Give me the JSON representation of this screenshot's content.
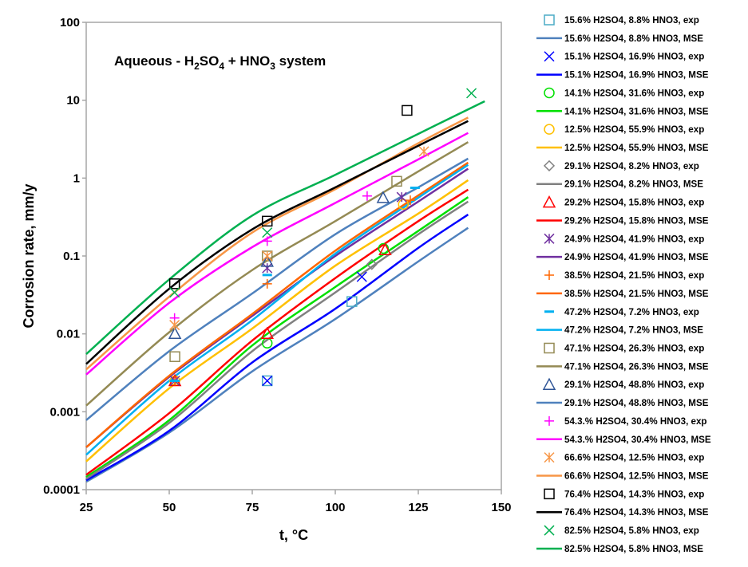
{
  "chart_data": {
    "type": "line",
    "title": "Aqueous - H2SO4 + HNO3 system",
    "title_parts": {
      "a": "Aqueous - H",
      "s1": "2",
      "b": "SO",
      "s2": "4",
      "c": " + HNO",
      "s3": "3",
      "d": " system"
    },
    "xlabel": "t, °C",
    "ylabel": "Corrosion rate, mm/y",
    "xlim": [
      25,
      150
    ],
    "ylim": [
      0.0001,
      100
    ],
    "yscale": "log",
    "xticks": [
      25,
      50,
      75,
      100,
      125,
      150
    ],
    "yticks": [
      0.0001,
      0.001,
      0.01,
      0.1,
      1,
      10,
      100
    ],
    "ytick_labels": [
      "0.0001",
      "0.001",
      "0.01",
      "0.1",
      "1",
      "10",
      "100"
    ],
    "grid": false,
    "legend_placement": "right",
    "series": [
      {
        "name": "15.6% H2SO4, 8.8% HNO3",
        "marker": "square",
        "marker_color": "#4BACC6",
        "line_color": "#4F81BD",
        "exp": [
          [
            105,
            0.026
          ],
          [
            79.5,
            0.0025
          ]
        ],
        "mse": [
          [
            25,
            0.000126
          ],
          [
            50,
            0.00054
          ],
          [
            75,
            0.0033
          ],
          [
            100,
            0.0155
          ],
          [
            125,
            0.085
          ],
          [
            140,
            0.23
          ]
        ]
      },
      {
        "name": "15.1% H2SO4, 16.9% HNO3",
        "marker": "x",
        "marker_color": "#0000FF",
        "line_color": "#0000FF",
        "exp": [
          [
            108,
            0.054
          ],
          [
            79.5,
            0.0025
          ]
        ],
        "mse": [
          [
            25,
            0.000132
          ],
          [
            50,
            0.00057
          ],
          [
            75,
            0.0043
          ],
          [
            100,
            0.021
          ],
          [
            125,
            0.127
          ],
          [
            140,
            0.34
          ]
        ]
      },
      {
        "name": "14.1% H2SO4, 31.6% HNO3",
        "marker": "circle",
        "marker_color": "#00E000",
        "line_color": "#00E000",
        "exp": [
          [
            79.5,
            0.0076
          ],
          [
            114.5,
            0.125
          ]
        ],
        "mse": [
          [
            25,
            0.000145
          ],
          [
            50,
            0.00078
          ],
          [
            75,
            0.0071
          ],
          [
            100,
            0.04
          ],
          [
            125,
            0.21
          ],
          [
            140,
            0.57
          ]
        ]
      },
      {
        "name": "12.5% H2SO4, 55.9% HNO3",
        "marker": "circle",
        "marker_color": "#FFC000",
        "line_color": "#FFC000",
        "exp": [
          [
            120.5,
            0.46
          ],
          [
            51.7,
            0.0025
          ]
        ],
        "mse": [
          [
            25,
            0.00023
          ],
          [
            50,
            0.002
          ],
          [
            75,
            0.0117
          ],
          [
            100,
            0.075
          ],
          [
            125,
            0.35
          ],
          [
            140,
            0.94
          ]
        ]
      },
      {
        "name": "29.1% H2SO4, 8.2% HNO3",
        "marker": "diamond",
        "marker_color": "#808080",
        "line_color": "#808080",
        "exp": [
          [
            111,
            0.078
          ]
        ],
        "mse": [
          [
            25,
            0.000138
          ],
          [
            50,
            0.00072
          ],
          [
            75,
            0.006
          ],
          [
            100,
            0.034
          ],
          [
            125,
            0.19
          ],
          [
            140,
            0.5
          ]
        ]
      },
      {
        "name": "29.2% H2SO4, 15.8% HNO3",
        "marker": "triangle",
        "marker_color": "#FF0000",
        "line_color": "#FF0000",
        "exp": [
          [
            79.5,
            0.0101
          ],
          [
            115,
            0.12
          ],
          [
            51.7,
            0.0025
          ]
        ],
        "mse": [
          [
            25,
            0.000155
          ],
          [
            50,
            0.00096
          ],
          [
            75,
            0.0082
          ],
          [
            100,
            0.052
          ],
          [
            125,
            0.28
          ],
          [
            140,
            0.71
          ]
        ]
      },
      {
        "name": "24.9% H2SO4, 41.9% HNO3",
        "marker": "star",
        "marker_color": "#7030A0",
        "line_color": "#7030A0",
        "exp": [
          [
            79.5,
            0.07
          ],
          [
            120,
            0.57
          ],
          [
            51.7,
            0.0025
          ]
        ],
        "mse": [
          [
            25,
            0.00035
          ],
          [
            50,
            0.0028
          ],
          [
            75,
            0.017
          ],
          [
            100,
            0.1
          ],
          [
            125,
            0.5
          ],
          [
            140,
            1.32
          ]
        ]
      },
      {
        "name": "38.5% H2SO4, 21.5% HNO3",
        "marker": "plus",
        "marker_color": "#FF6600",
        "line_color": "#FF6600",
        "exp": [
          [
            79.5,
            0.044
          ],
          [
            122.6,
            0.52
          ],
          [
            51.7,
            0.0025
          ]
        ],
        "mse": [
          [
            25,
            0.00035
          ],
          [
            50,
            0.0029
          ],
          [
            75,
            0.018
          ],
          [
            100,
            0.117
          ],
          [
            125,
            0.6
          ],
          [
            140,
            1.58
          ]
        ]
      },
      {
        "name": "47.2% H2SO4, 7.2% HNO3",
        "marker": "dash",
        "marker_color": "#00B0F0",
        "line_color": "#00B0F0",
        "exp": [
          [
            124,
            0.75
          ],
          [
            79.5,
            0.057
          ],
          [
            51.7,
            0.0025
          ]
        ],
        "mse": [
          [
            25,
            0.00028
          ],
          [
            50,
            0.0025
          ],
          [
            75,
            0.015
          ],
          [
            100,
            0.107
          ],
          [
            125,
            0.56
          ],
          [
            140,
            1.48
          ]
        ]
      },
      {
        "name": "47.1% H2SO4, 26.3% HNO3",
        "marker": "square",
        "marker_color": "#948A54",
        "line_color": "#948A54",
        "exp": [
          [
            118.5,
            0.91
          ],
          [
            79.5,
            0.1
          ],
          [
            51.7,
            0.0051
          ]
        ],
        "mse": [
          [
            25,
            0.0012
          ],
          [
            50,
            0.0105
          ],
          [
            75,
            0.066
          ],
          [
            100,
            0.28
          ],
          [
            125,
            1.22
          ],
          [
            140,
            2.9
          ]
        ]
      },
      {
        "name": "29.1% H2SO4, 48.8% HNO3",
        "marker": "triangle",
        "marker_color": "#2F5597",
        "line_color": "#4F81BD",
        "exp": [
          [
            51.7,
            0.0101
          ],
          [
            114.4,
            0.56
          ],
          [
            79.5,
            0.085
          ]
        ],
        "mse": [
          [
            25,
            0.00078
          ],
          [
            50,
            0.006
          ],
          [
            75,
            0.033
          ],
          [
            100,
            0.19
          ],
          [
            125,
            0.76
          ],
          [
            140,
            1.78
          ]
        ]
      },
      {
        "name": "54.3.% H2SO4, 30.4% HNO3",
        "marker": "plus",
        "marker_color": "#FF00FF",
        "line_color": "#FF00FF",
        "exp": [
          [
            51.6,
            0.016
          ],
          [
            79.5,
            0.155
          ],
          [
            109.6,
            0.59
          ]
        ],
        "mse": [
          [
            25,
            0.003
          ],
          [
            50,
            0.025
          ],
          [
            75,
            0.13
          ],
          [
            100,
            0.48
          ],
          [
            125,
            1.74
          ],
          [
            140,
            3.8
          ]
        ]
      },
      {
        "name": "66.6% H2SO4, 12.5% HNO3",
        "marker": "star",
        "marker_color": "#F79646",
        "line_color": "#F79646",
        "exp": [
          [
            51.6,
            0.013
          ],
          [
            126.7,
            2.2
          ],
          [
            79.5,
            0.1
          ]
        ],
        "mse": [
          [
            25,
            0.0035
          ],
          [
            50,
            0.03
          ],
          [
            75,
            0.2
          ],
          [
            100,
            0.72
          ],
          [
            125,
            2.8
          ],
          [
            140,
            6.0
          ]
        ]
      },
      {
        "name": "76.4% H2SO4, 14.3% HNO3",
        "marker": "square",
        "marker_color": "#000000",
        "line_color": "#000000",
        "exp": [
          [
            51.6,
            0.044
          ],
          [
            79.5,
            0.28
          ],
          [
            121.6,
            7.4
          ]
        ],
        "mse": [
          [
            25,
            0.0041
          ],
          [
            50,
            0.038
          ],
          [
            75,
            0.22
          ],
          [
            100,
            0.76
          ],
          [
            125,
            2.6
          ],
          [
            140,
            5.4
          ]
        ]
      },
      {
        "name": "82.5% H2SO4, 5.8% HNO3",
        "marker": "x",
        "marker_color": "#00B050",
        "line_color": "#00B050",
        "exp": [
          [
            51.6,
            0.034
          ],
          [
            79.5,
            0.2
          ],
          [
            141,
            12.3
          ]
        ],
        "mse": [
          [
            25,
            0.0055
          ],
          [
            50,
            0.05
          ],
          [
            75,
            0.33
          ],
          [
            100,
            1.1
          ],
          [
            125,
            3.7
          ],
          [
            145,
            9.7
          ]
        ]
      }
    ],
    "legend_suffix_exp": ", exp",
    "legend_suffix_mse": ", MSE"
  }
}
